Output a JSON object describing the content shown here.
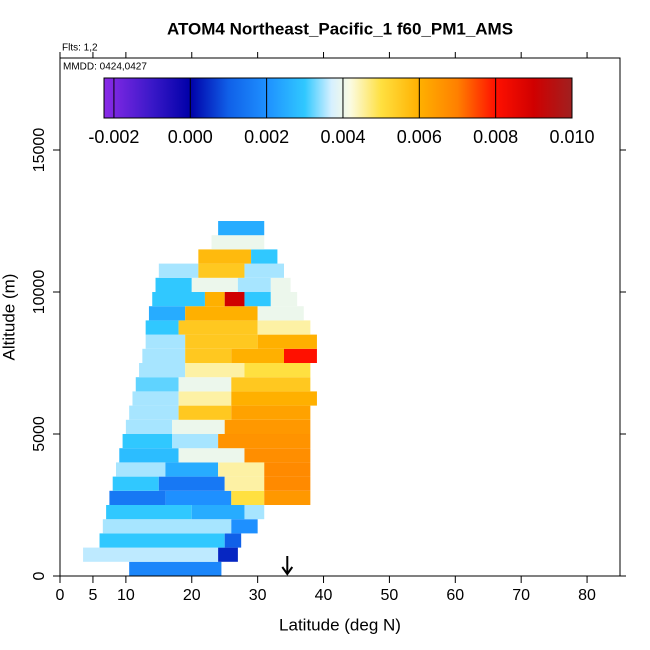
{
  "chart_data": {
    "type": "curtain",
    "title": "ATOM4 Northeast_Pacific_1 f60_PM1_AMS",
    "subtitle": "Flts: 1,2",
    "annotation": "MMDD: 0424,0427",
    "x_label": "Latitude (deg N)",
    "y_label": "Altitude (m)",
    "xlim": [
      0,
      85
    ],
    "xticks": [
      0,
      5,
      10,
      20,
      30,
      40,
      50,
      60,
      70,
      80
    ],
    "ylim": [
      0,
      18240
    ],
    "yticks": [
      0,
      5000,
      10000,
      15000
    ],
    "marker_lat": 34.5,
    "colorbar_lim": [
      -0.00226,
      0.01
    ],
    "colorbar_ticks": [
      {
        "value": -0.002,
        "label": "-0.002"
      },
      {
        "value": 0,
        "label": "0.000"
      },
      {
        "value": 0.002,
        "label": "0.002"
      },
      {
        "value": 0.004,
        "label": "0.004"
      },
      {
        "value": 0.006,
        "label": "0.006"
      },
      {
        "value": 0.008,
        "label": "0.008"
      },
      {
        "value": 0.01,
        "label": "0.010"
      }
    ],
    "colorscale": [
      [
        -0.00226,
        "#8b2be8"
      ],
      [
        -0.001,
        "#3a18c8"
      ],
      [
        0,
        "#0000a8"
      ],
      [
        0.001,
        "#1060e8"
      ],
      [
        0.002,
        "#1e90ff"
      ],
      [
        0.003,
        "#30c8ff"
      ],
      [
        0.0037,
        "#d6f0ff"
      ],
      [
        0.0042,
        "#fbfbe0"
      ],
      [
        0.005,
        "#ffe040"
      ],
      [
        0.006,
        "#ffb000"
      ],
      [
        0.007,
        "#ff8000"
      ],
      [
        0.008,
        "#ff1000"
      ],
      [
        0.009,
        "#d00000"
      ],
      [
        0.01,
        "#a02020"
      ]
    ],
    "rows": [
      {
        "alt": [
          0,
          500
        ],
        "lat": [
          10.5,
          24.5
        ],
        "values": [
          0.0018
        ]
      },
      {
        "alt": [
          500,
          1000
        ],
        "lat": [
          3.5,
          24,
          27
        ],
        "values": [
          0.0036,
          0.0004
        ]
      },
      {
        "alt": [
          1000,
          1500
        ],
        "lat": [
          6,
          25,
          27.5
        ],
        "values": [
          0.003,
          0.001
        ]
      },
      {
        "alt": [
          1500,
          2000
        ],
        "lat": [
          6.5,
          26,
          30
        ],
        "values": [
          0.0035,
          0.002
        ]
      },
      {
        "alt": [
          2000,
          2500
        ],
        "lat": [
          7,
          20,
          28,
          31
        ],
        "values": [
          0.003,
          0.0025,
          0.0035
        ]
      },
      {
        "alt": [
          2500,
          3000
        ],
        "lat": [
          7.5,
          16,
          26,
          31,
          38
        ],
        "values": [
          0.0015,
          0.002,
          0.005,
          0.0065
        ]
      },
      {
        "alt": [
          3000,
          3500
        ],
        "lat": [
          8,
          15,
          25,
          31,
          38
        ],
        "values": [
          0.003,
          0.0015,
          0.0045,
          0.0068
        ]
      },
      {
        "alt": [
          3500,
          4000
        ],
        "lat": [
          8.5,
          16,
          24,
          31,
          38
        ],
        "values": [
          0.0035,
          0.0025,
          0.0045,
          0.0068
        ]
      },
      {
        "alt": [
          4000,
          4500
        ],
        "lat": [
          9,
          18,
          28,
          38
        ],
        "values": [
          0.0028,
          0.004,
          0.0067
        ]
      },
      {
        "alt": [
          4500,
          5000
        ],
        "lat": [
          9.5,
          17,
          24,
          38
        ],
        "values": [
          0.003,
          0.0035,
          0.0066
        ]
      },
      {
        "alt": [
          5000,
          5500
        ],
        "lat": [
          10,
          17,
          25,
          38
        ],
        "values": [
          0.0035,
          0.004,
          0.0065
        ]
      },
      {
        "alt": [
          5500,
          6000
        ],
        "lat": [
          10.5,
          18,
          26,
          38
        ],
        "values": [
          0.0035,
          0.0055,
          0.0063
        ]
      },
      {
        "alt": [
          6000,
          6500
        ],
        "lat": [
          11,
          18,
          26,
          39
        ],
        "values": [
          0.0035,
          0.0045,
          0.006
        ]
      },
      {
        "alt": [
          6500,
          7000
        ],
        "lat": [
          11.5,
          18,
          26,
          38
        ],
        "values": [
          0.0032,
          0.004,
          0.0055
        ]
      },
      {
        "alt": [
          7000,
          7500
        ],
        "lat": [
          12,
          19,
          28,
          38
        ],
        "values": [
          0.0035,
          0.0045,
          0.005
        ]
      },
      {
        "alt": [
          7500,
          8000
        ],
        "lat": [
          12.5,
          19,
          26,
          34,
          39
        ],
        "values": [
          0.0035,
          0.0055,
          0.006,
          0.008
        ]
      },
      {
        "alt": [
          8000,
          8500
        ],
        "lat": [
          13,
          19,
          30,
          39
        ],
        "values": [
          0.0035,
          0.0055,
          0.006
        ]
      },
      {
        "alt": [
          8500,
          9000
        ],
        "lat": [
          13,
          18,
          30,
          38
        ],
        "values": [
          0.003,
          0.0055,
          0.0045
        ]
      },
      {
        "alt": [
          9000,
          9500
        ],
        "lat": [
          13.5,
          19,
          30,
          37
        ],
        "values": [
          0.0025,
          0.006,
          0.004
        ]
      },
      {
        "alt": [
          9500,
          10000
        ],
        "lat": [
          14,
          22,
          25,
          28,
          32,
          36
        ],
        "values": [
          0.003,
          0.006,
          0.009,
          0.003,
          0.004
        ]
      },
      {
        "alt": [
          10000,
          10500
        ],
        "lat": [
          14.5,
          20,
          27,
          32,
          35
        ],
        "values": [
          0.003,
          0.004,
          0.0035,
          0.004
        ]
      },
      {
        "alt": [
          10500,
          11000
        ],
        "lat": [
          15,
          21,
          28,
          34
        ],
        "values": [
          0.0035,
          0.0055,
          0.0035
        ]
      },
      {
        "alt": [
          11000,
          11500
        ],
        "lat": [
          21,
          29,
          33
        ],
        "values": [
          0.0058,
          0.003
        ]
      },
      {
        "alt": [
          11500,
          12000
        ],
        "lat": [
          23,
          31
        ],
        "values": [
          0.004
        ]
      },
      {
        "alt": [
          12000,
          12500
        ],
        "lat": [
          24,
          31
        ],
        "values": [
          0.0025
        ]
      }
    ]
  }
}
